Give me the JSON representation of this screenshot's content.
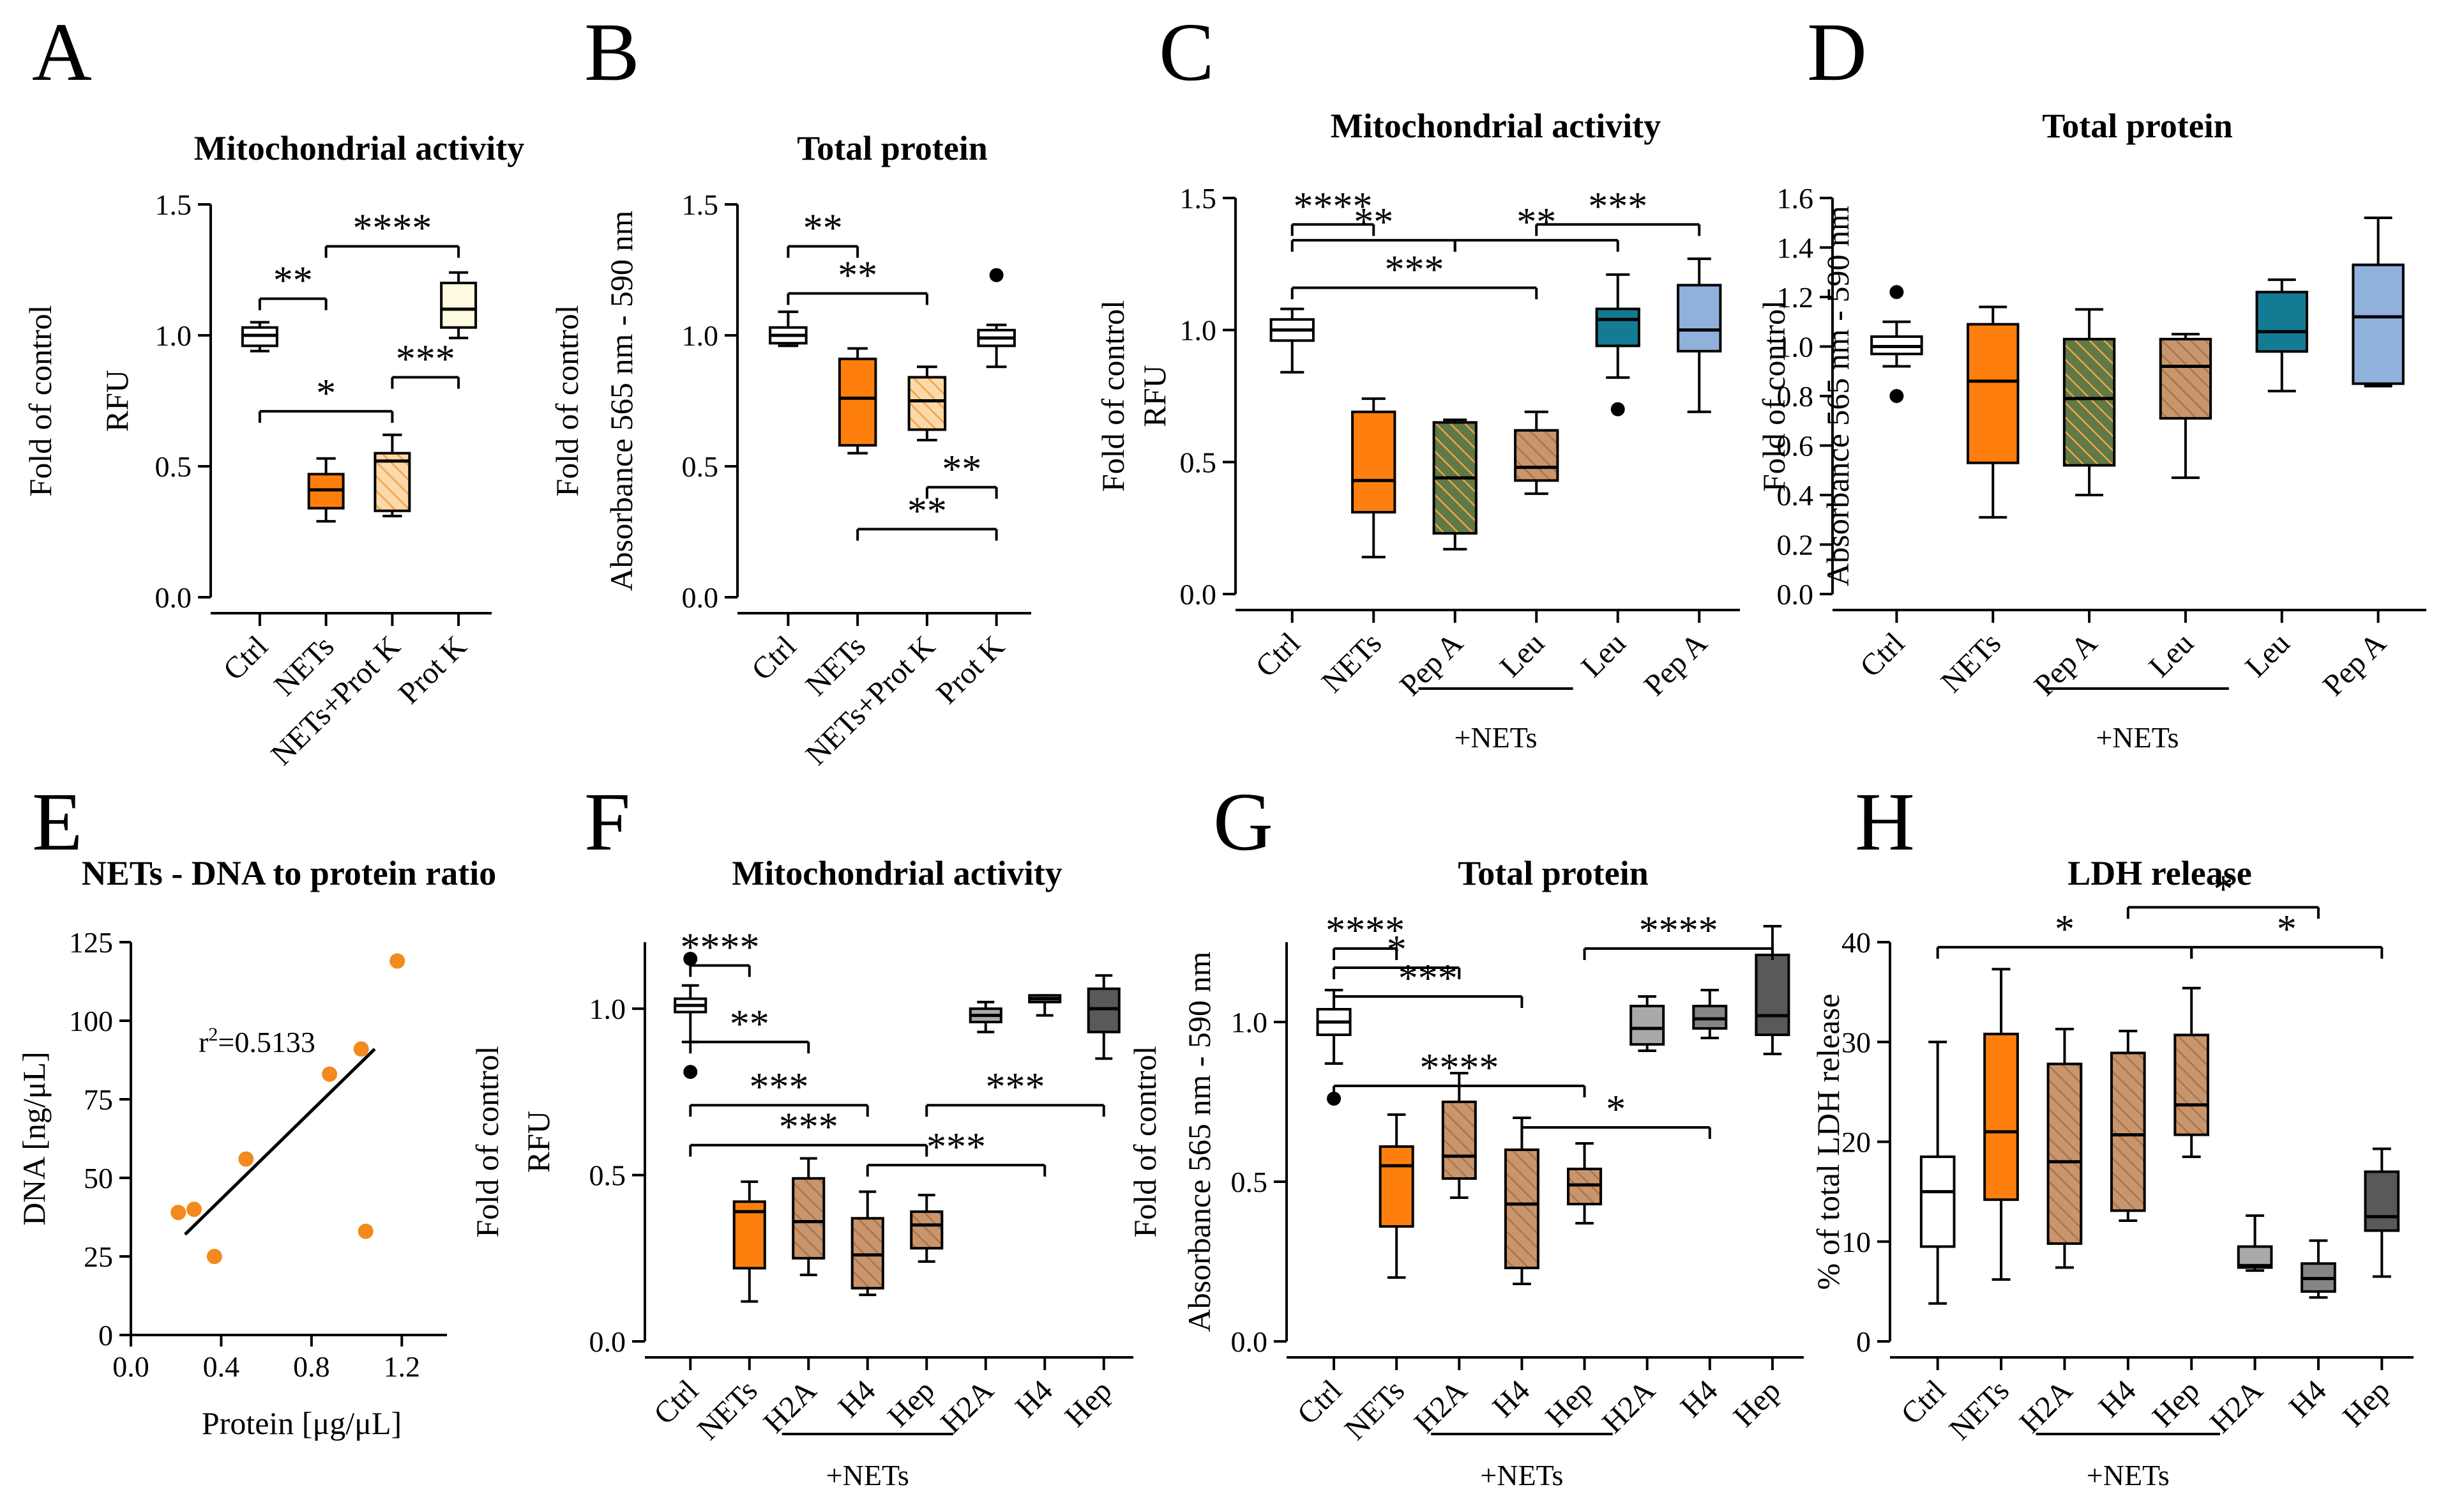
{
  "colors": {
    "white": "#ffffff",
    "cream": "#fffbe0",
    "orange": "#ff7f0e",
    "orange_light": "#fcd9a8",
    "orange_hatch": "#f2a24a",
    "green_hatch": "#5e7a45",
    "tan": "#c9956c",
    "tan_hatch": "#a8744c",
    "teal": "#137b93",
    "blue_light": "#8fb1dc",
    "gray_light": "#a9a9a9",
    "gray_mid": "#858585",
    "gray_dark": "#595959",
    "dot_orange": "#f28a1e"
  },
  "chart_data": [
    {
      "id": "A",
      "type": "box",
      "letter": "A",
      "title": "Mitochondrial activity",
      "ylabel_lines": [
        "Fold of control",
        "RFU"
      ],
      "ylim": [
        0,
        1.5
      ],
      "yticks": [
        0,
        0.5,
        1.0,
        1.5
      ],
      "tick_labels": [
        "0.0",
        "0.5",
        "1.0",
        "1.5"
      ],
      "categories": [
        "Ctrl",
        "NETs",
        "NETs+Prot K",
        "Prot K"
      ],
      "boxes": [
        {
          "min": 0.94,
          "q1": 0.96,
          "median": 1.0,
          "q3": 1.03,
          "max": 1.05,
          "fill": "white",
          "hatch": false
        },
        {
          "min": 0.29,
          "q1": 0.34,
          "median": 0.41,
          "q3": 0.47,
          "max": 0.53,
          "fill": "orange",
          "hatch": false
        },
        {
          "min": 0.31,
          "q1": 0.33,
          "median": 0.52,
          "q3": 0.55,
          "max": 0.62,
          "fill": "orange_light",
          "hatch": true,
          "hatch_color": "orange_hatch"
        },
        {
          "min": 0.99,
          "q1": 1.03,
          "median": 1.1,
          "q3": 1.2,
          "max": 1.24,
          "fill": "cream",
          "hatch": false
        }
      ],
      "outliers": [],
      "sig": [
        {
          "x1": 0,
          "x2": 1,
          "y": 1.14,
          "label": "**"
        },
        {
          "x1": 1,
          "x2": 3,
          "y": 1.34,
          "label": "****"
        },
        {
          "x1": 2,
          "x2": 3,
          "y": 0.84,
          "label": "***"
        },
        {
          "x1": 0,
          "x2": 2,
          "y": 0.71,
          "label": "*"
        }
      ]
    },
    {
      "id": "B",
      "type": "box",
      "letter": "B",
      "title": "Total protein",
      "ylabel_lines": [
        "Fold of control",
        "Absorbance 565 nm - 590 nm"
      ],
      "ylim": [
        0,
        1.5
      ],
      "yticks": [
        0,
        0.5,
        1.0,
        1.5
      ],
      "tick_labels": [
        "0.0",
        "0.5",
        "1.0",
        "1.5"
      ],
      "categories": [
        "Ctrl",
        "NETs",
        "NETs+Prot K",
        "Prot K"
      ],
      "boxes": [
        {
          "min": 0.96,
          "q1": 0.97,
          "median": 1.0,
          "q3": 1.03,
          "max": 1.09,
          "fill": "white",
          "hatch": false
        },
        {
          "min": 0.55,
          "q1": 0.58,
          "median": 0.76,
          "q3": 0.91,
          "max": 0.95,
          "fill": "orange",
          "hatch": false
        },
        {
          "min": 0.6,
          "q1": 0.64,
          "median": 0.75,
          "q3": 0.84,
          "max": 0.88,
          "fill": "orange_light",
          "hatch": true,
          "hatch_color": "orange_hatch"
        },
        {
          "min": 0.88,
          "q1": 0.96,
          "median": 0.99,
          "q3": 1.02,
          "max": 1.04,
          "fill": "white",
          "hatch": false
        }
      ],
      "outliers": [
        {
          "x": 3,
          "y": 1.23
        }
      ],
      "sig": [
        {
          "x1": 0,
          "x2": 1,
          "y": 1.34,
          "label": "**"
        },
        {
          "x1": 0,
          "x2": 2,
          "y": 1.16,
          "label": "**"
        },
        {
          "x1": 2,
          "x2": 3,
          "y": 0.42,
          "label": "**"
        },
        {
          "x1": 1,
          "x2": 3,
          "y": 0.26,
          "label": "**"
        }
      ]
    },
    {
      "id": "C",
      "type": "box",
      "letter": "C",
      "title": "Mitochondrial activity",
      "ylabel_lines": [
        "Fold of control",
        "RFU"
      ],
      "ylim": [
        0,
        1.5
      ],
      "yticks": [
        0,
        0.5,
        1.0,
        1.5
      ],
      "tick_labels": [
        "0.0",
        "0.5",
        "1.0",
        "1.5"
      ],
      "categories": [
        "Ctrl",
        "NETs",
        "Pep A",
        "Leu",
        "Leu",
        "Pep A"
      ],
      "group_label": "+NETs",
      "group_range": [
        2,
        3
      ],
      "boxes": [
        {
          "min": 0.84,
          "q1": 0.96,
          "median": 1.0,
          "q3": 1.04,
          "max": 1.08,
          "fill": "white",
          "hatch": false
        },
        {
          "min": 0.14,
          "q1": 0.31,
          "median": 0.43,
          "q3": 0.69,
          "max": 0.74,
          "fill": "orange",
          "hatch": false
        },
        {
          "min": 0.17,
          "q1": 0.23,
          "median": 0.44,
          "q3": 0.65,
          "max": 0.66,
          "fill": "green_hatch",
          "hatch": true,
          "hatch_color": "orange_hatch"
        },
        {
          "min": 0.38,
          "q1": 0.43,
          "median": 0.48,
          "q3": 0.62,
          "max": 0.69,
          "fill": "tan",
          "hatch": true,
          "hatch_color": "tan_hatch"
        },
        {
          "min": 0.82,
          "q1": 0.94,
          "median": 1.04,
          "q3": 1.08,
          "max": 1.21,
          "fill": "teal",
          "hatch": false
        },
        {
          "min": 0.69,
          "q1": 0.92,
          "median": 1.0,
          "q3": 1.17,
          "max": 1.27,
          "fill": "blue_light",
          "hatch": false
        }
      ],
      "outliers": [
        {
          "x": 4,
          "y": 0.7
        }
      ],
      "sig": [
        {
          "x1": 0,
          "x2": 1,
          "y": 1.4,
          "label": "****"
        },
        {
          "x1": 3,
          "x2": 5,
          "y": 1.4,
          "label": "***"
        },
        {
          "x1": 0,
          "x2": 2,
          "y": 1.34,
          "label": "**"
        },
        {
          "x1": 2,
          "x2": 4,
          "y": 1.34,
          "label": "**"
        },
        {
          "x1": 0,
          "x2": 3,
          "y": 1.16,
          "label": "***"
        }
      ]
    },
    {
      "id": "D",
      "type": "box",
      "letter": "D",
      "title": "Total protein",
      "ylabel_lines": [
        "Fold of control",
        "Absorbance 565 nm - 590 nm"
      ],
      "ylim": [
        0,
        1.6
      ],
      "yticks": [
        0,
        0.2,
        0.4,
        0.6,
        0.8,
        1.0,
        1.2,
        1.4,
        1.6
      ],
      "tick_labels": [
        "0.0",
        "0.2",
        "0.4",
        "0.6",
        "0.8",
        "1.0",
        "1.2",
        "1.4",
        "1.6"
      ],
      "categories": [
        "Ctrl",
        "NETs",
        "Pep A",
        "Leu",
        "Leu",
        "Pep A"
      ],
      "group_label": "+NETs",
      "group_range": [
        2,
        3
      ],
      "boxes": [
        {
          "min": 0.92,
          "q1": 0.97,
          "median": 1.0,
          "q3": 1.04,
          "max": 1.1,
          "fill": "white",
          "hatch": false
        },
        {
          "min": 0.31,
          "q1": 0.53,
          "median": 0.86,
          "q3": 1.09,
          "max": 1.16,
          "fill": "orange",
          "hatch": false
        },
        {
          "min": 0.4,
          "q1": 0.52,
          "median": 0.79,
          "q3": 1.03,
          "max": 1.15,
          "fill": "green_hatch",
          "hatch": true,
          "hatch_color": "orange_hatch"
        },
        {
          "min": 0.47,
          "q1": 0.71,
          "median": 0.92,
          "q3": 1.03,
          "max": 1.05,
          "fill": "tan",
          "hatch": true,
          "hatch_color": "tan_hatch"
        },
        {
          "min": 0.82,
          "q1": 0.98,
          "median": 1.06,
          "q3": 1.22,
          "max": 1.27,
          "fill": "teal",
          "hatch": false
        },
        {
          "min": 0.84,
          "q1": 0.85,
          "median": 1.12,
          "q3": 1.33,
          "max": 1.52,
          "fill": "blue_light",
          "hatch": false
        }
      ],
      "outliers": [
        {
          "x": 0,
          "y": 1.22
        },
        {
          "x": 0,
          "y": 0.8
        }
      ],
      "sig": []
    },
    {
      "id": "E",
      "type": "scatter",
      "letter": "E",
      "title": "NETs - DNA to protein ratio",
      "xlabel": "Protein [μg/μL]",
      "ylabel": "DNA [ng/μL]",
      "xlim": [
        0,
        1.4
      ],
      "ylim": [
        0,
        125
      ],
      "xticks": [
        0.0,
        0.4,
        0.8,
        1.2
      ],
      "xtick_labels": [
        "0.0",
        "0.4",
        "0.8",
        "1.2"
      ],
      "yticks": [
        0,
        25,
        50,
        75,
        100,
        125
      ],
      "ytick_labels": [
        "0",
        "25",
        "50",
        "75",
        "100",
        "125"
      ],
      "points": [
        {
          "x": 0.21,
          "y": 39
        },
        {
          "x": 0.28,
          "y": 40
        },
        {
          "x": 0.37,
          "y": 25
        },
        {
          "x": 0.51,
          "y": 56
        },
        {
          "x": 0.88,
          "y": 83
        },
        {
          "x": 1.02,
          "y": 91
        },
        {
          "x": 1.04,
          "y": 33
        },
        {
          "x": 1.18,
          "y": 119
        }
      ],
      "fit": {
        "x1": 0.24,
        "y1": 32,
        "x2": 1.08,
        "y2": 91
      },
      "annotation_r": "r",
      "annotation_sup": "2",
      "annotation_value": "=0.5133"
    },
    {
      "id": "F",
      "type": "box",
      "letter": "F",
      "title": "Mitochondrial activity",
      "ylabel_lines": [
        "Fold of control",
        "RFU"
      ],
      "ylim": [
        0,
        1.2
      ],
      "yticks": [
        0,
        0.5,
        1.0
      ],
      "tick_labels": [
        "0.0",
        "0.5",
        "1.0"
      ],
      "categories": [
        "Ctrl",
        "NETs",
        "H2A",
        "H4",
        "Hep",
        "H2A",
        "H4",
        "Hep"
      ],
      "group_label": "+NETs",
      "group_range": [
        2,
        4
      ],
      "boxes": [
        {
          "min": 0.9,
          "q1": 0.99,
          "median": 1.01,
          "q3": 1.03,
          "max": 1.07,
          "fill": "white",
          "hatch": false
        },
        {
          "min": 0.12,
          "q1": 0.22,
          "median": 0.39,
          "q3": 0.42,
          "max": 0.48,
          "fill": "orange",
          "hatch": false
        },
        {
          "min": 0.2,
          "q1": 0.25,
          "median": 0.36,
          "q3": 0.49,
          "max": 0.55,
          "fill": "tan",
          "hatch": true,
          "hatch_color": "tan_hatch"
        },
        {
          "min": 0.14,
          "q1": 0.16,
          "median": 0.26,
          "q3": 0.37,
          "max": 0.45,
          "fill": "tan",
          "hatch": true,
          "hatch_color": "tan_hatch"
        },
        {
          "min": 0.24,
          "q1": 0.28,
          "median": 0.35,
          "q3": 0.39,
          "max": 0.44,
          "fill": "tan",
          "hatch": true,
          "hatch_color": "tan_hatch"
        },
        {
          "min": 0.93,
          "q1": 0.96,
          "median": 0.98,
          "q3": 1.0,
          "max": 1.02,
          "fill": "gray_light",
          "hatch": false
        },
        {
          "min": 0.98,
          "q1": 1.02,
          "median": 1.03,
          "q3": 1.04,
          "max": 1.04,
          "fill": "gray_mid",
          "hatch": false
        },
        {
          "min": 0.85,
          "q1": 0.93,
          "median": 1.0,
          "q3": 1.06,
          "max": 1.1,
          "fill": "gray_dark",
          "hatch": false
        }
      ],
      "outliers": [
        {
          "x": 0,
          "y": 1.15
        },
        {
          "x": 0,
          "y": 0.81
        }
      ],
      "sig": [
        {
          "x1": 0,
          "x2": 1,
          "y": 1.13,
          "label": "****"
        },
        {
          "x1": 0,
          "x2": 2,
          "y": 0.9,
          "label": "**"
        },
        {
          "x1": 0,
          "x2": 3,
          "y": 0.71,
          "label": "***"
        },
        {
          "x1": 4,
          "x2": 7,
          "y": 0.71,
          "label": "***"
        },
        {
          "x1": 0,
          "x2": 4,
          "y": 0.59,
          "label": "***"
        },
        {
          "x1": 3,
          "x2": 6,
          "y": 0.53,
          "label": "***"
        }
      ]
    },
    {
      "id": "G",
      "type": "box",
      "letter": "G",
      "title": "Total protein",
      "ylabel_lines": [
        "Fold of control",
        "Absorbance  565 nm - 590 nm"
      ],
      "ylim": [
        0,
        1.25
      ],
      "yticks": [
        0,
        0.5,
        1.0
      ],
      "tick_labels": [
        "0.0",
        "0.5",
        "1.0"
      ],
      "categories": [
        "Ctrl",
        "NETs",
        "H2A",
        "H4",
        "Hep",
        "H2A",
        "H4",
        "Hep"
      ],
      "group_label": "+NETs",
      "group_range": [
        2,
        4
      ],
      "boxes": [
        {
          "min": 0.87,
          "q1": 0.96,
          "median": 1.0,
          "q3": 1.04,
          "max": 1.1,
          "fill": "white",
          "hatch": false
        },
        {
          "min": 0.2,
          "q1": 0.36,
          "median": 0.55,
          "q3": 0.61,
          "max": 0.71,
          "fill": "orange",
          "hatch": false
        },
        {
          "min": 0.45,
          "q1": 0.51,
          "median": 0.58,
          "q3": 0.75,
          "max": 0.84,
          "fill": "tan",
          "hatch": true,
          "hatch_color": "tan_hatch"
        },
        {
          "min": 0.18,
          "q1": 0.23,
          "median": 0.43,
          "q3": 0.6,
          "max": 0.7,
          "fill": "tan",
          "hatch": true,
          "hatch_color": "tan_hatch"
        },
        {
          "min": 0.37,
          "q1": 0.43,
          "median": 0.49,
          "q3": 0.54,
          "max": 0.62,
          "fill": "tan",
          "hatch": true,
          "hatch_color": "tan_hatch"
        },
        {
          "min": 0.91,
          "q1": 0.93,
          "median": 0.98,
          "q3": 1.05,
          "max": 1.08,
          "fill": "gray_light",
          "hatch": false
        },
        {
          "min": 0.95,
          "q1": 0.98,
          "median": 1.01,
          "q3": 1.05,
          "max": 1.1,
          "fill": "gray_mid",
          "hatch": false
        },
        {
          "min": 0.9,
          "q1": 0.96,
          "median": 1.02,
          "q3": 1.21,
          "max": 1.3,
          "fill": "gray_dark",
          "hatch": false
        }
      ],
      "outliers": [
        {
          "x": 0,
          "y": 0.76
        }
      ],
      "sig": [
        {
          "x1": 0,
          "x2": 1,
          "y": 1.23,
          "label": "****"
        },
        {
          "x1": 0,
          "x2": 2,
          "y": 1.17,
          "label": "*"
        },
        {
          "x1": 4,
          "x2": 7,
          "y": 1.23,
          "label": "****"
        },
        {
          "x1": 0,
          "x2": 3,
          "y": 1.08,
          "label": "***"
        },
        {
          "x1": 0,
          "x2": 4,
          "y": 0.8,
          "label": "****"
        },
        {
          "x1": 3,
          "x2": 6,
          "y": 0.67,
          "label": "*"
        }
      ]
    },
    {
      "id": "H",
      "type": "box",
      "letter": "H",
      "title": "LDH release",
      "ylabel_lines": [
        "% of total  LDH release"
      ],
      "ylim": [
        0,
        40
      ],
      "yticks": [
        0,
        10,
        20,
        30,
        40
      ],
      "tick_labels": [
        "0",
        "10",
        "20",
        "30",
        "40"
      ],
      "categories": [
        "Ctrl",
        "NETs",
        "H2A",
        "H4",
        "Hep",
        "H2A",
        "H4",
        "Hep"
      ],
      "group_label": "+NETs",
      "group_range": [
        2,
        4
      ],
      "boxes": [
        {
          "min": 3.8,
          "q1": 9.5,
          "median": 15,
          "q3": 18.5,
          "max": 30,
          "fill": "white",
          "hatch": false
        },
        {
          "min": 6.2,
          "q1": 14.2,
          "median": 21,
          "q3": 30.8,
          "max": 37.3,
          "fill": "orange",
          "hatch": false
        },
        {
          "min": 7.4,
          "q1": 9.8,
          "median": 18,
          "q3": 27.8,
          "max": 31.3,
          "fill": "tan",
          "hatch": true,
          "hatch_color": "tan_hatch"
        },
        {
          "min": 12.1,
          "q1": 13.1,
          "median": 20.7,
          "q3": 28.9,
          "max": 31.1,
          "fill": "tan",
          "hatch": true,
          "hatch_color": "tan_hatch"
        },
        {
          "min": 18.5,
          "q1": 20.7,
          "median": 23.7,
          "q3": 30.7,
          "max": 35.4,
          "fill": "tan",
          "hatch": true,
          "hatch_color": "tan_hatch"
        },
        {
          "min": 7.1,
          "q1": 7.4,
          "median": 7.6,
          "q3": 9.5,
          "max": 12.6,
          "fill": "gray_light",
          "hatch": false
        },
        {
          "min": 4.4,
          "q1": 5.0,
          "median": 6.3,
          "q3": 7.8,
          "max": 10.1,
          "fill": "gray_mid",
          "hatch": false
        },
        {
          "min": 6.5,
          "q1": 11.1,
          "median": 12.5,
          "q3": 17.0,
          "max": 19.3,
          "fill": "gray_dark",
          "hatch": false
        }
      ],
      "outliers": [],
      "sig": [
        {
          "x1": 3,
          "x2": 6,
          "y": 43.5,
          "label": "*"
        },
        {
          "x1": 0,
          "x2": 4,
          "y": 39.5,
          "label": "*"
        },
        {
          "x1": 4,
          "x2": 7,
          "y": 39.5,
          "label": "*"
        }
      ]
    }
  ]
}
